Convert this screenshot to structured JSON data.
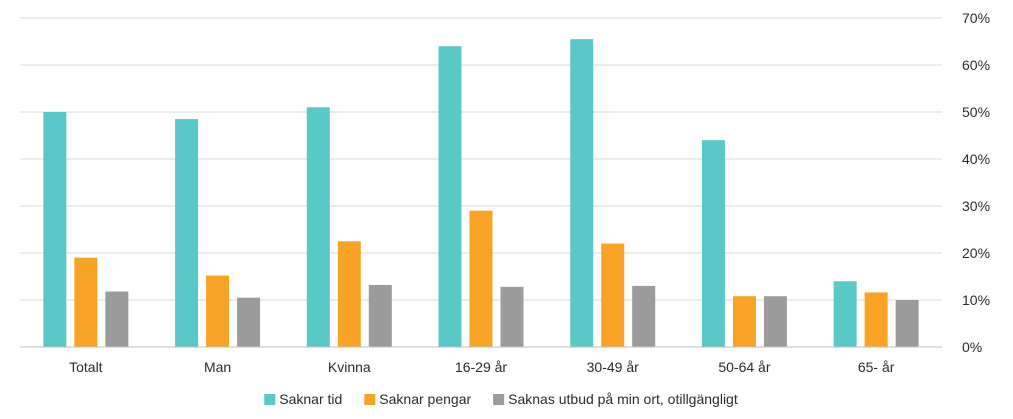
{
  "chart_data": {
    "type": "bar",
    "title": "",
    "xlabel": "",
    "ylabel": "",
    "categories": [
      "Totalt",
      "Man",
      "Kvinna",
      "16-29 år",
      "30-49 år",
      "50-64 år",
      "65- år"
    ],
    "series": [
      {
        "name": "Saknar tid",
        "color": "#5bc8c8",
        "values": [
          50,
          48.5,
          51,
          64,
          65.5,
          44,
          14
        ]
      },
      {
        "name": "Saknar pengar",
        "color": "#f7a325",
        "values": [
          19,
          15.2,
          22.5,
          29,
          22,
          10.8,
          11.6
        ]
      },
      {
        "name": "Saknas utbud på min ort, otillgängligt",
        "color": "#9b9b9b",
        "values": [
          11.8,
          10.5,
          13.2,
          12.8,
          13,
          10.8,
          10
        ]
      }
    ],
    "ylim": [
      0,
      70
    ],
    "yticks": [
      0,
      10,
      20,
      30,
      40,
      50,
      60,
      70
    ],
    "ytick_format": "percent",
    "y_axis_position": "right",
    "grid": true,
    "legend_position": "bottom"
  }
}
